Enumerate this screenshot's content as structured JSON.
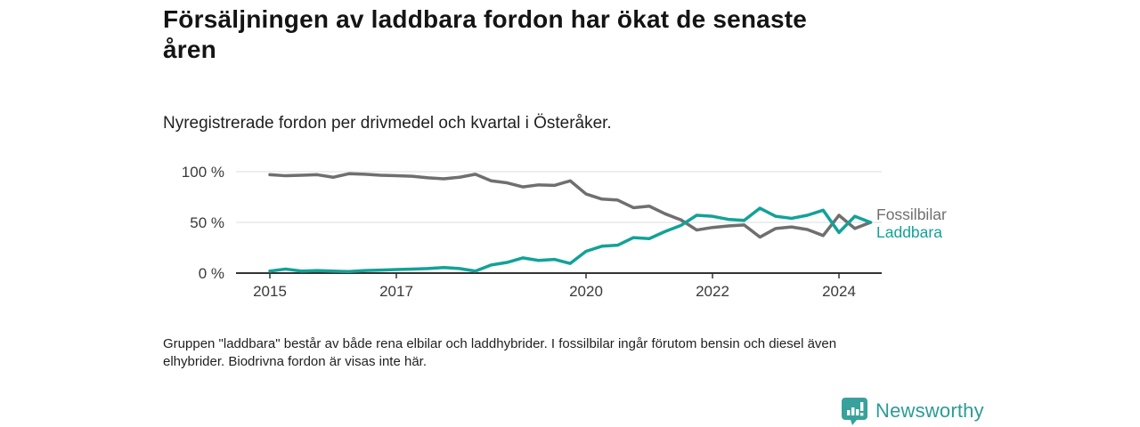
{
  "page": {
    "title_lines": [
      "Försäljningen av laddbara fordon har ökat de senaste",
      "åren"
    ],
    "subtitle": "Nyregistrerade fordon per drivmedel och kvartal i Österåker.",
    "footnote_lines": [
      "Gruppen \"laddbara\" består av både rena elbilar och laddhybrider. I fossilbilar ingår förutom bensin och diesel även",
      "elhybrider. Biodrivna fordon är visas inte här."
    ],
    "logo_text": "Newsworthy",
    "colors": {
      "laddbara_line": "#13a297",
      "fossilbilar_line": "#6f6f6f",
      "axis": "#333333",
      "gridline": "#dedede",
      "title_text": "#141414",
      "logo_teal": "#39a19c"
    }
  },
  "chart_data": {
    "type": "line",
    "title": "Försäljningen av laddbara fordon har ökat de senaste åren",
    "subtitle": "Nyregistrerade fordon per drivmedel och kvartal i Österåker.",
    "xlabel": "",
    "ylabel": "",
    "ylim": [
      0,
      100
    ],
    "grid": "horizontal",
    "legend_position": "right-end",
    "x": [
      "2015 Q1",
      "2015 Q2",
      "2015 Q3",
      "2015 Q4",
      "2016 Q1",
      "2016 Q2",
      "2016 Q3",
      "2016 Q4",
      "2017 Q1",
      "2017 Q2",
      "2017 Q3",
      "2017 Q4",
      "2018 Q1",
      "2018 Q2",
      "2018 Q3",
      "2018 Q4",
      "2019 Q1",
      "2019 Q2",
      "2019 Q3",
      "2019 Q4",
      "2020 Q1",
      "2020 Q2",
      "2020 Q3",
      "2020 Q4",
      "2021 Q1",
      "2021 Q2",
      "2021 Q3",
      "2021 Q4",
      "2022 Q1",
      "2022 Q2",
      "2022 Q3",
      "2022 Q4",
      "2023 Q1",
      "2023 Q2",
      "2023 Q3",
      "2023 Q4",
      "2024 Q1",
      "2024 Q2",
      "2024 Q3"
    ],
    "series": [
      {
        "name": "Fossilbilar",
        "color": "#6f6f6f",
        "values": [
          97,
          96,
          96.5,
          97,
          94.5,
          98,
          97.5,
          96.5,
          96,
          95.5,
          94,
          93,
          94.5,
          97.5,
          91,
          89,
          85,
          87,
          86.5,
          91,
          78,
          73,
          72,
          64.5,
          66,
          58.5,
          52.5,
          42.5,
          45,
          46.5,
          47.5,
          35.5,
          44,
          45.5,
          43,
          37,
          57,
          44,
          50
        ]
      },
      {
        "name": "Laddbara",
        "color": "#13a297",
        "values": [
          2,
          4,
          2,
          2.5,
          2,
          1.5,
          2.5,
          3,
          3.5,
          4,
          4.5,
          5.5,
          4.5,
          2,
          8,
          10.5,
          15,
          12.5,
          13.5,
          9.5,
          21.5,
          26.5,
          27.5,
          35,
          34,
          41,
          47,
          57,
          56,
          53,
          52,
          64,
          56,
          54,
          57,
          62,
          40,
          56,
          50
        ]
      }
    ],
    "yticks": [
      {
        "label": "0 %",
        "value": 0
      },
      {
        "label": "50 %",
        "value": 50
      },
      {
        "label": "100 %",
        "value": 100
      }
    ],
    "xticks": [
      {
        "label": "2015",
        "year": 2015
      },
      {
        "label": "2017",
        "year": 2017
      },
      {
        "label": "2020",
        "year": 2020
      },
      {
        "label": "2022",
        "year": 2022
      },
      {
        "label": "2024",
        "year": 2024
      }
    ]
  }
}
